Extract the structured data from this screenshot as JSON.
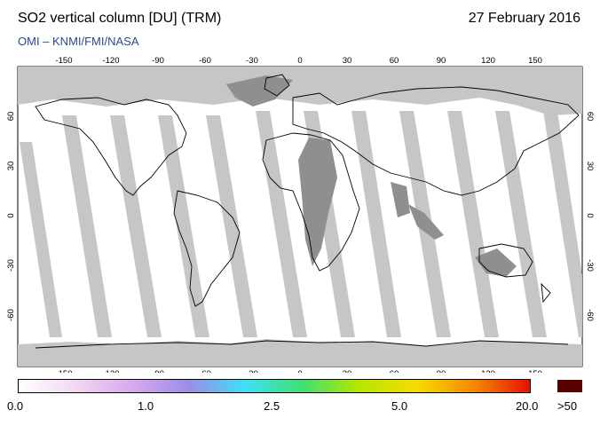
{
  "header": {
    "title": "SO2 vertical column [DU] (TRM)",
    "date": "27 February 2016",
    "credit": "OMI  –  KNMI/FMI/NASA"
  },
  "map": {
    "lon_labels": [
      "-150",
      "-120",
      "-90",
      "-60",
      "-30",
      "0",
      "30",
      "60",
      "90",
      "120",
      "150"
    ],
    "lat_labels": [
      "60",
      "30",
      "0",
      "-30",
      "-60"
    ],
    "colors": {
      "no_data": "#bfbfbf",
      "swath_gap": "#8c8c8c",
      "land_outline": "#000000",
      "background": "#ffffff"
    }
  },
  "colorbar": {
    "labels": [
      "0.0",
      "1.0",
      "2.5",
      "5.0",
      "20.0",
      ">50"
    ],
    "colors": [
      "#ffffff",
      "#f2d8f2",
      "#d9a8ec",
      "#9a8ee6",
      "#3ee0f6",
      "#40e070",
      "#b6e600",
      "#f6dc00",
      "#f58a00",
      "#e81000",
      "#5a0000"
    ]
  }
}
